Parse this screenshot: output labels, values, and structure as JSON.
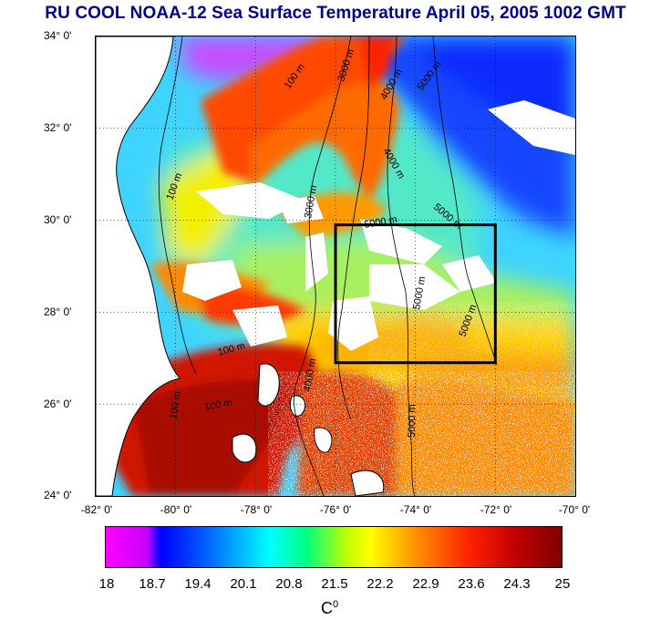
{
  "title": "RU COOL  NOAA-12 Sea Surface Temperature April 05, 2005 1002 GMT",
  "axes": {
    "y_ticks": [
      "34° 0'",
      "32° 0'",
      "30° 0'",
      "28° 0'",
      "26° 0'",
      "24° 0'"
    ],
    "x_ticks": [
      "-82° 0'",
      "-80° 0'",
      "-78° 0'",
      "-76° 0'",
      "-74° 0'",
      "-72° 0'",
      "-70° 0'"
    ],
    "lat_range": [
      24,
      34
    ],
    "lon_range": [
      -82,
      -70
    ]
  },
  "box": {
    "lon_range": [
      -76,
      -72
    ],
    "lat_range": [
      27,
      30
    ]
  },
  "contours": {
    "labels": [
      "100 m",
      "100 m",
      "100 m",
      "100 m",
      "100 m",
      "3000 m",
      "3000 m",
      "4000 m",
      "4000 m",
      "4000 m",
      "5000 m",
      "5000 m",
      "5000 m",
      "5000 m",
      "5000 m",
      "5000 m"
    ]
  },
  "colorbar": {
    "ticks": [
      "18",
      "18.7",
      "19.4",
      "20.1",
      "20.8",
      "21.5",
      "22.2",
      "22.9",
      "23.6",
      "24.3",
      "25"
    ],
    "unit": "C",
    "unit_sup": "0",
    "colors": [
      "#ff00ff",
      "#0000ff",
      "#00ffff",
      "#00ff00",
      "#ffff00",
      "#ff0000",
      "#800000"
    ]
  }
}
